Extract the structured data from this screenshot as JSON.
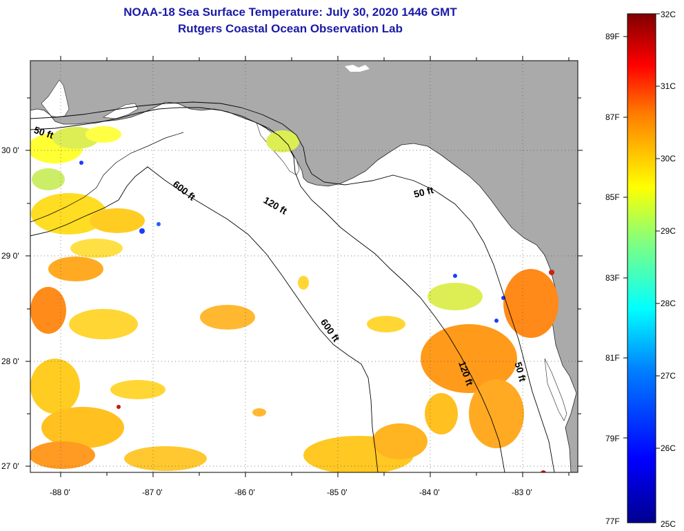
{
  "header": {
    "title_line_1": "NOAA-18 Sea Surface Temperature:  July 30, 2020 1446 GMT",
    "title_line_2": "Rutgers Coastal Ocean Observation Lab"
  },
  "map": {
    "region": "Northeastern Gulf of Mexico",
    "lon_ticks": [
      "-88 0'",
      "-87 0'",
      "-86 0'",
      "-85 0'",
      "-84 0'",
      "-83 0'"
    ],
    "lat_ticks": [
      "30 0'",
      "29 0'",
      "28 0'",
      "27 0'"
    ],
    "contours": {
      "c600_a": "600 ft",
      "c600_b": "600 ft",
      "c120_a": "120 ft",
      "c120_b": "120 ft",
      "c50_a": "50 ft",
      "c50_b": "50 ft",
      "c50_c": "50 ft"
    },
    "colors": {
      "land": "#aaaaaa",
      "water_no_data": "#ffffff"
    }
  },
  "colorbar": {
    "fahrenheit_labels": [
      "89F",
      "87F",
      "85F",
      "83F",
      "81F",
      "79F",
      "77F"
    ],
    "celsius_labels": [
      "32C",
      "31C",
      "30C",
      "29C",
      "28C",
      "27C",
      "26C",
      "25C"
    ],
    "colors": [
      "#00008f",
      "#0000ff",
      "#0080ff",
      "#00ffff",
      "#80ff80",
      "#ffff00",
      "#ff8000",
      "#ff0000",
      "#800000"
    ]
  }
}
